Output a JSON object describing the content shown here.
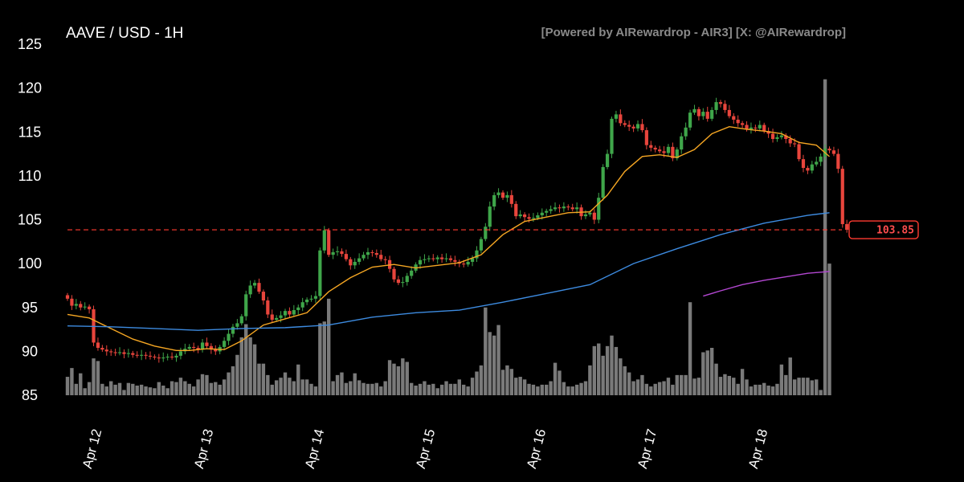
{
  "chart_data": {
    "type": "candlestick",
    "title": "AAVE / USD - 1H",
    "watermark": "[Powered by AIRewardrop - AIR3] [X: @AIRewardrop]",
    "ylim": [
      85,
      125
    ],
    "yticks": [
      85,
      90,
      95,
      100,
      105,
      110,
      115,
      120,
      125
    ],
    "xtick_labels": [
      "Apr 12",
      "Apr 13",
      "Apr 14",
      "Apr 15",
      "Apr 16",
      "Apr 17",
      "Apr 18"
    ],
    "current_price": 103.85,
    "current_price_label": "103.85",
    "colors": {
      "up": "#3fa64a",
      "down": "#e8453c",
      "volume": "#7a7a7a",
      "ma_short": "#f5a623",
      "ma_mid": "#3d8be0",
      "ma_long": "#b347d1",
      "price_line": "#ff3b30"
    },
    "candles_close": [
      96.0,
      95.2,
      95.4,
      95.0,
      95.1,
      94.8,
      91.0,
      90.4,
      90.2,
      90.0,
      89.9,
      89.8,
      89.9,
      89.7,
      89.8,
      89.6,
      89.5,
      89.6,
      89.5,
      89.4,
      89.3,
      89.2,
      89.3,
      89.4,
      89.3,
      89.5,
      90.0,
      90.3,
      90.5,
      90.4,
      90.2,
      91.0,
      90.6,
      90.2,
      90.0,
      90.5,
      91.2,
      92.0,
      92.8,
      93.2,
      94.0,
      96.5,
      97.5,
      97.8,
      96.8,
      95.8,
      94.2,
      93.6,
      93.8,
      94.1,
      94.6,
      94.2,
      94.7,
      95.0,
      95.6,
      95.9,
      96.0,
      96.3,
      101.5,
      103.8,
      101.0,
      101.3,
      101.4,
      101.1,
      100.5,
      99.8,
      100.2,
      100.6,
      101.0,
      101.3,
      101.2,
      101.0,
      100.5,
      100.4,
      99.4,
      98.2,
      97.8,
      97.9,
      98.6,
      99.2,
      99.9,
      100.4,
      100.5,
      100.6,
      100.5,
      100.7,
      100.5,
      100.6,
      100.4,
      100.2,
      100.0,
      99.9,
      100.2,
      100.6,
      101.5,
      102.8,
      104.2,
      106.5,
      107.8,
      108.1,
      107.5,
      107.8,
      106.8,
      105.4,
      105.6,
      105.3,
      105.1,
      105.2,
      105.5,
      105.8,
      106.0,
      106.2,
      106.4,
      106.3,
      106.5,
      106.4,
      106.2,
      106.4,
      105.4,
      105.6,
      105.8,
      105.0,
      107.5,
      111.0,
      112.5,
      116.5,
      117.0,
      116.0,
      115.8,
      115.6,
      115.4,
      115.9,
      115.2,
      113.5,
      113.2,
      113.0,
      112.8,
      112.6,
      113.3,
      112.0,
      113.0,
      114.5,
      115.5,
      117.2,
      117.6,
      116.8,
      117.3,
      116.5,
      117.5,
      118.4,
      118.2,
      117.5,
      116.8,
      116.4,
      116.0,
      115.8,
      115.3,
      115.5,
      115.4,
      115.8,
      115.1,
      114.8,
      114.2,
      114.4,
      114.6,
      114.2,
      113.7,
      113.6,
      111.9,
      110.9,
      110.6,
      111.3,
      111.6,
      112.2,
      113.1,
      112.9,
      112.5,
      110.8,
      104.5,
      103.85
    ],
    "volume_bars": [
      {
        "x": 0,
        "v": 87.1
      },
      {
        "x": 1,
        "v": 88.1
      },
      {
        "x": 2,
        "v": 86.3
      },
      {
        "x": 3,
        "v": 87.5
      },
      {
        "x": 4,
        "v": 85.8
      },
      {
        "x": 5,
        "v": 86.5
      },
      {
        "x": 6,
        "v": 89.2
      },
      {
        "x": 7,
        "v": 88.9
      },
      {
        "x": 8,
        "v": 86.3
      },
      {
        "x": 9,
        "v": 86.0
      },
      {
        "x": 10,
        "v": 86.6
      },
      {
        "x": 11,
        "v": 86.2
      },
      {
        "x": 12,
        "v": 86.4
      },
      {
        "x": 13,
        "v": 85.6
      },
      {
        "x": 14,
        "v": 86.4
      },
      {
        "x": 15,
        "v": 86.3
      },
      {
        "x": 16,
        "v": 86.1
      },
      {
        "x": 17,
        "v": 86.2
      },
      {
        "x": 18,
        "v": 86.0
      },
      {
        "x": 19,
        "v": 85.9
      },
      {
        "x": 20,
        "v": 85.8
      },
      {
        "x": 21,
        "v": 86.5
      },
      {
        "x": 22,
        "v": 86.1
      },
      {
        "x": 23,
        "v": 85.8
      },
      {
        "x": 24,
        "v": 86.6
      },
      {
        "x": 25,
        "v": 86.5
      },
      {
        "x": 26,
        "v": 87.0
      },
      {
        "x": 27,
        "v": 86.6
      },
      {
        "x": 28,
        "v": 86.3
      },
      {
        "x": 29,
        "v": 86.0
      },
      {
        "x": 30,
        "v": 86.8
      },
      {
        "x": 31,
        "v": 87.4
      },
      {
        "x": 32,
        "v": 87.3
      },
      {
        "x": 33,
        "v": 86.4
      },
      {
        "x": 34,
        "v": 86.5
      },
      {
        "x": 35,
        "v": 86.2
      },
      {
        "x": 36,
        "v": 86.8
      },
      {
        "x": 37,
        "v": 87.6
      },
      {
        "x": 38,
        "v": 88.3
      },
      {
        "x": 39,
        "v": 89.6
      },
      {
        "x": 40,
        "v": 91.6
      },
      {
        "x": 41,
        "v": 93.1
      },
      {
        "x": 42,
        "v": 91.6
      },
      {
        "x": 43,
        "v": 90.8
      },
      {
        "x": 44,
        "v": 88.6
      },
      {
        "x": 45,
        "v": 88.6
      },
      {
        "x": 46,
        "v": 87.3
      },
      {
        "x": 47,
        "v": 86.2
      },
      {
        "x": 48,
        "v": 86.7
      },
      {
        "x": 49,
        "v": 87.0
      },
      {
        "x": 50,
        "v": 87.6
      },
      {
        "x": 51,
        "v": 87.0
      },
      {
        "x": 52,
        "v": 86.6
      },
      {
        "x": 53,
        "v": 88.5
      },
      {
        "x": 54,
        "v": 86.8
      },
      {
        "x": 55,
        "v": 86.8
      },
      {
        "x": 56,
        "v": 86.3
      },
      {
        "x": 57,
        "v": 86.0
      },
      {
        "x": 58,
        "v": 93.2
      },
      {
        "x": 59,
        "v": 93.4
      },
      {
        "x": 60,
        "v": 96.0
      },
      {
        "x": 61,
        "v": 86.6
      },
      {
        "x": 62,
        "v": 87.3
      },
      {
        "x": 63,
        "v": 87.6
      },
      {
        "x": 64,
        "v": 86.4
      },
      {
        "x": 65,
        "v": 86.6
      },
      {
        "x": 66,
        "v": 87.5
      },
      {
        "x": 67,
        "v": 86.7
      },
      {
        "x": 68,
        "v": 86.4
      },
      {
        "x": 69,
        "v": 86.3
      },
      {
        "x": 70,
        "v": 86.3
      },
      {
        "x": 71,
        "v": 86.4
      },
      {
        "x": 72,
        "v": 86.0
      },
      {
        "x": 73,
        "v": 86.6
      },
      {
        "x": 74,
        "v": 89.0
      },
      {
        "x": 75,
        "v": 88.6
      },
      {
        "x": 76,
        "v": 88.3
      },
      {
        "x": 77,
        "v": 89.2
      },
      {
        "x": 78,
        "v": 88.8
      },
      {
        "x": 79,
        "v": 86.4
      },
      {
        "x": 80,
        "v": 86.1
      },
      {
        "x": 81,
        "v": 86.3
      },
      {
        "x": 82,
        "v": 86.6
      },
      {
        "x": 83,
        "v": 86.2
      },
      {
        "x": 84,
        "v": 86.3
      },
      {
        "x": 85,
        "v": 85.8
      },
      {
        "x": 86,
        "v": 86.2
      },
      {
        "x": 87,
        "v": 86.6
      },
      {
        "x": 88,
        "v": 86.3
      },
      {
        "x": 89,
        "v": 86.3
      },
      {
        "x": 90,
        "v": 86.8
      },
      {
        "x": 91,
        "v": 86.2
      },
      {
        "x": 92,
        "v": 86.0
      },
      {
        "x": 93,
        "v": 87.0
      },
      {
        "x": 94,
        "v": 87.7
      },
      {
        "x": 95,
        "v": 88.4
      },
      {
        "x": 96,
        "v": 95.0
      },
      {
        "x": 97,
        "v": 92.2
      },
      {
        "x": 98,
        "v": 91.8
      },
      {
        "x": 99,
        "v": 93.0
      },
      {
        "x": 100,
        "v": 87.9
      },
      {
        "x": 101,
        "v": 88.4
      },
      {
        "x": 102,
        "v": 88.0
      },
      {
        "x": 103,
        "v": 87.0
      },
      {
        "x": 104,
        "v": 87.1
      },
      {
        "x": 105,
        "v": 86.8
      },
      {
        "x": 106,
        "v": 86.3
      },
      {
        "x": 107,
        "v": 86.2
      },
      {
        "x": 108,
        "v": 86.0
      },
      {
        "x": 109,
        "v": 86.2
      },
      {
        "x": 110,
        "v": 86.2
      },
      {
        "x": 111,
        "v": 86.6
      },
      {
        "x": 112,
        "v": 88.7
      },
      {
        "x": 113,
        "v": 87.8
      },
      {
        "x": 114,
        "v": 86.5
      },
      {
        "x": 115,
        "v": 86.0
      },
      {
        "x": 116,
        "v": 86.0
      },
      {
        "x": 117,
        "v": 86.2
      },
      {
        "x": 118,
        "v": 86.4
      },
      {
        "x": 119,
        "v": 86.6
      },
      {
        "x": 120,
        "v": 88.4
      },
      {
        "x": 121,
        "v": 90.6
      },
      {
        "x": 122,
        "v": 90.9
      },
      {
        "x": 123,
        "v": 89.5
      },
      {
        "x": 124,
        "v": 90.6
      },
      {
        "x": 125,
        "v": 91.8
      },
      {
        "x": 126,
        "v": 90.5
      },
      {
        "x": 127,
        "v": 89.2
      },
      {
        "x": 128,
        "v": 88.3
      },
      {
        "x": 129,
        "v": 87.6
      },
      {
        "x": 130,
        "v": 86.6
      },
      {
        "x": 131,
        "v": 86.8
      },
      {
        "x": 132,
        "v": 87.3
      },
      {
        "x": 133,
        "v": 86.3
      },
      {
        "x": 134,
        "v": 86.0
      },
      {
        "x": 135,
        "v": 86.3
      },
      {
        "x": 136,
        "v": 86.5
      },
      {
        "x": 137,
        "v": 86.6
      },
      {
        "x": 138,
        "v": 87.0
      },
      {
        "x": 139,
        "v": 86.2
      },
      {
        "x": 140,
        "v": 87.3
      },
      {
        "x": 141,
        "v": 87.3
      },
      {
        "x": 142,
        "v": 87.3
      },
      {
        "x": 143,
        "v": 95.6
      },
      {
        "x": 144,
        "v": 86.9
      },
      {
        "x": 145,
        "v": 87.0
      },
      {
        "x": 146,
        "v": 89.9
      },
      {
        "x": 147,
        "v": 90.1
      },
      {
        "x": 148,
        "v": 90.4
      },
      {
        "x": 149,
        "v": 88.6
      },
      {
        "x": 150,
        "v": 87.1
      },
      {
        "x": 151,
        "v": 87.4
      },
      {
        "x": 152,
        "v": 87.2
      },
      {
        "x": 153,
        "v": 87.0
      },
      {
        "x": 154,
        "v": 86.3
      },
      {
        "x": 155,
        "v": 88.0
      },
      {
        "x": 156,
        "v": 86.8
      },
      {
        "x": 157,
        "v": 86.0
      },
      {
        "x": 158,
        "v": 86.2
      },
      {
        "x": 159,
        "v": 86.2
      },
      {
        "x": 160,
        "v": 86.4
      },
      {
        "x": 161,
        "v": 86.1
      },
      {
        "x": 162,
        "v": 86.0
      },
      {
        "x": 163,
        "v": 86.3
      },
      {
        "x": 164,
        "v": 88.5
      },
      {
        "x": 165,
        "v": 87.3
      },
      {
        "x": 166,
        "v": 89.3
      },
      {
        "x": 167,
        "v": 86.8
      },
      {
        "x": 168,
        "v": 87.0
      },
      {
        "x": 169,
        "v": 87.0
      },
      {
        "x": 170,
        "v": 87.0
      },
      {
        "x": 171,
        "v": 86.7
      },
      {
        "x": 172,
        "v": 86.8
      },
      {
        "x": 173,
        "v": 85.6
      },
      {
        "x": 174,
        "v": 121.0
      },
      {
        "x": 175,
        "v": 100.0
      }
    ],
    "ma_short": [
      {
        "x": 0,
        "y": 94.2
      },
      {
        "x": 5,
        "y": 93.8
      },
      {
        "x": 10,
        "y": 92.6
      },
      {
        "x": 15,
        "y": 91.4
      },
      {
        "x": 20,
        "y": 90.6
      },
      {
        "x": 25,
        "y": 90.1
      },
      {
        "x": 28,
        "y": 90.1
      },
      {
        "x": 32,
        "y": 90.3
      },
      {
        "x": 36,
        "y": 90.2
      },
      {
        "x": 40,
        "y": 91.2
      },
      {
        "x": 45,
        "y": 93.0
      },
      {
        "x": 50,
        "y": 93.7
      },
      {
        "x": 55,
        "y": 94.4
      },
      {
        "x": 60,
        "y": 96.8
      },
      {
        "x": 65,
        "y": 98.4
      },
      {
        "x": 70,
        "y": 99.6
      },
      {
        "x": 75,
        "y": 99.9
      },
      {
        "x": 80,
        "y": 99.5
      },
      {
        "x": 85,
        "y": 99.8
      },
      {
        "x": 90,
        "y": 100.1
      },
      {
        "x": 95,
        "y": 101.0
      },
      {
        "x": 100,
        "y": 103.3
      },
      {
        "x": 105,
        "y": 104.8
      },
      {
        "x": 110,
        "y": 105.3
      },
      {
        "x": 115,
        "y": 105.8
      },
      {
        "x": 120,
        "y": 105.9
      },
      {
        "x": 124,
        "y": 107.8
      },
      {
        "x": 128,
        "y": 110.5
      },
      {
        "x": 132,
        "y": 112.2
      },
      {
        "x": 136,
        "y": 112.4
      },
      {
        "x": 140,
        "y": 112.1
      },
      {
        "x": 144,
        "y": 113.0
      },
      {
        "x": 148,
        "y": 114.8
      },
      {
        "x": 152,
        "y": 115.6
      },
      {
        "x": 156,
        "y": 115.3
      },
      {
        "x": 160,
        "y": 115.1
      },
      {
        "x": 164,
        "y": 114.8
      },
      {
        "x": 168,
        "y": 113.8
      },
      {
        "x": 172,
        "y": 113.5
      },
      {
        "x": 175,
        "y": 112.2
      }
    ],
    "ma_mid": [
      {
        "x": 0,
        "y": 92.9
      },
      {
        "x": 10,
        "y": 92.8
      },
      {
        "x": 20,
        "y": 92.6
      },
      {
        "x": 30,
        "y": 92.4
      },
      {
        "x": 40,
        "y": 92.6
      },
      {
        "x": 50,
        "y": 92.7
      },
      {
        "x": 60,
        "y": 93.0
      },
      {
        "x": 70,
        "y": 93.9
      },
      {
        "x": 80,
        "y": 94.4
      },
      {
        "x": 90,
        "y": 94.7
      },
      {
        "x": 100,
        "y": 95.6
      },
      {
        "x": 110,
        "y": 96.6
      },
      {
        "x": 120,
        "y": 97.6
      },
      {
        "x": 130,
        "y": 100.0
      },
      {
        "x": 140,
        "y": 101.7
      },
      {
        "x": 150,
        "y": 103.3
      },
      {
        "x": 160,
        "y": 104.6
      },
      {
        "x": 170,
        "y": 105.5
      },
      {
        "x": 175,
        "y": 105.8
      }
    ],
    "ma_long": [
      {
        "x": 146,
        "y": 96.3
      },
      {
        "x": 150,
        "y": 96.9
      },
      {
        "x": 155,
        "y": 97.6
      },
      {
        "x": 160,
        "y": 98.1
      },
      {
        "x": 165,
        "y": 98.5
      },
      {
        "x": 170,
        "y": 98.9
      },
      {
        "x": 175,
        "y": 99.1
      }
    ]
  }
}
